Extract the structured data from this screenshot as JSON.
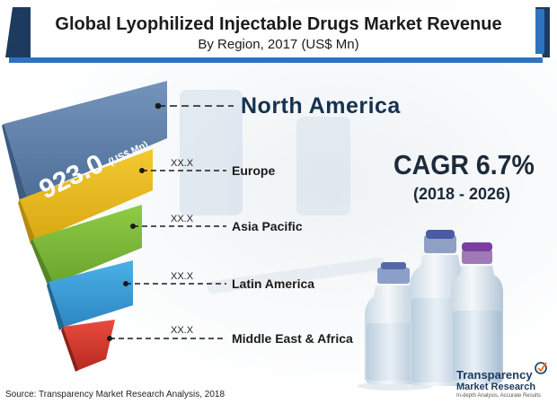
{
  "title": "Global Lyophilized Injectable Drugs Market Revenue",
  "subtitle": "By Region, 2017 (US$ Mn)",
  "cagr": {
    "value": "CAGR 6.7%",
    "period": "(2018 - 2026)"
  },
  "source": "Source: Transparency Market Research Analysis, 2018",
  "logo": {
    "line1": "Transparency",
    "line2": "Market Research",
    "tagline": "In-depth Analysis, Accurate Results"
  },
  "colors": {
    "header_navy": "#1e3a5f",
    "header_blue": "#2e73c0",
    "north_america": "#5b7fa8",
    "europe": "#e8b81c",
    "asia_pacific": "#7eb83a",
    "latin_america": "#3a9ad6",
    "middle_east_africa": "#d63a2e"
  },
  "chart_data": {
    "type": "funnel",
    "title": "Global Lyophilized Injectable Drugs Market Revenue",
    "subtitle": "By Region, 2017 (US$ Mn)",
    "categories": [
      "North America",
      "Europe",
      "Asia Pacific",
      "Latin America",
      "Middle East & Africa"
    ],
    "values": [
      "923.0",
      "XX.X",
      "XX.X",
      "XX.X",
      "XX.X"
    ],
    "value_unit": "(US$ Mn)",
    "labels": {
      "north_america_value": "923.0",
      "north_america_unit": "(US$ Mn)"
    }
  }
}
